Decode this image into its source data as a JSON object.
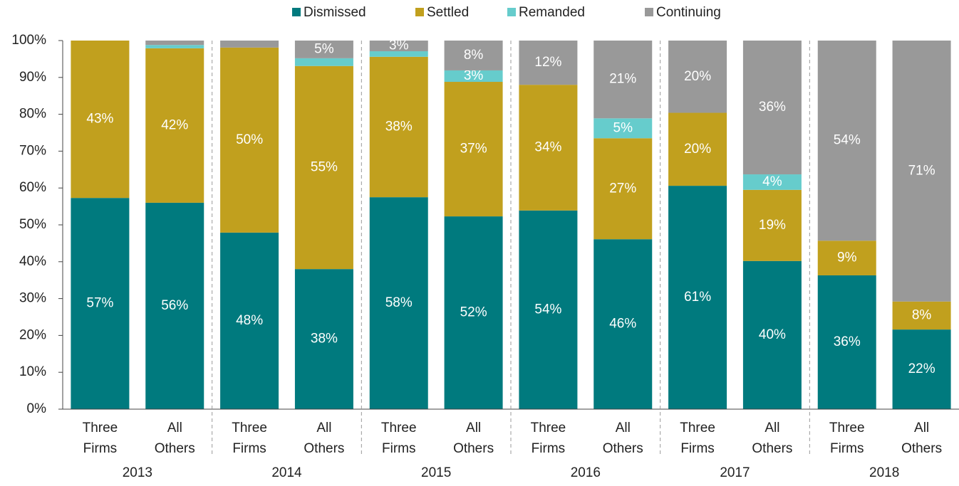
{
  "chart_data": {
    "type": "stacked_bar",
    "categories": [
      [
        "Three",
        "Firms"
      ],
      [
        "All",
        "Others"
      ],
      [
        "Three",
        "Firms"
      ],
      [
        "All",
        "Others"
      ],
      [
        "Three",
        "Firms"
      ],
      [
        "All",
        "Others"
      ],
      [
        "Three",
        "Firms"
      ],
      [
        "All",
        "Others"
      ],
      [
        "Three",
        "Firms"
      ],
      [
        "All",
        "Others"
      ],
      [
        "Three",
        "Firms"
      ],
      [
        "All",
        "Others"
      ]
    ],
    "groups": [
      "2013",
      "2014",
      "2015",
      "2016",
      "2017",
      "2018"
    ],
    "series": [
      {
        "name": "Dismissed",
        "color": "#007A7E",
        "values": [
          57.3,
          56.0,
          47.9,
          38.0,
          57.5,
          52.3,
          53.9,
          46.1,
          60.6,
          40.2,
          36.3,
          21.6
        ],
        "value_labels": [
          "57%",
          "56%",
          "48%",
          "38%",
          "58%",
          "52%",
          "54%",
          "46%",
          "61%",
          "40%",
          "36%",
          "22%"
        ]
      },
      {
        "name": "Settled",
        "color": "#C1A01E",
        "values": [
          42.7,
          41.9,
          50.2,
          55.1,
          38.1,
          36.5,
          34.1,
          27.4,
          19.8,
          19.3,
          9.4,
          7.6
        ],
        "value_labels": [
          "43%",
          "42%",
          "50%",
          "55%",
          "38%",
          "37%",
          "34%",
          "27%",
          "20%",
          "19%",
          "9%",
          "8%"
        ]
      },
      {
        "name": "Remanded",
        "color": "#66CCCC",
        "values": [
          0,
          0.9,
          0,
          2.1,
          1.5,
          3.1,
          0,
          5.4,
          0,
          4.2,
          0,
          0
        ],
        "value_labels": [
          null,
          null,
          null,
          null,
          null,
          "3%",
          null,
          "5%",
          null,
          "4%",
          null,
          null
        ]
      },
      {
        "name": "Continuing",
        "color": "#999999",
        "values": [
          0,
          1.2,
          1.9,
          4.8,
          2.9,
          8.1,
          12.0,
          21.1,
          19.6,
          36.3,
          54.3,
          70.8
        ],
        "value_labels": [
          null,
          null,
          null,
          "5%",
          "3%",
          "8%",
          "12%",
          "21%",
          "20%",
          "36%",
          "54%",
          "71%"
        ]
      }
    ],
    "ylim": [
      0,
      100
    ],
    "yticks": [
      {
        "value": 0,
        "label": "0%"
      },
      {
        "value": 10,
        "label": "10%"
      },
      {
        "value": 20,
        "label": "20%"
      },
      {
        "value": 30,
        "label": "30%"
      },
      {
        "value": 40,
        "label": "40%"
      },
      {
        "value": 50,
        "label": "50%"
      },
      {
        "value": 60,
        "label": "60%"
      },
      {
        "value": 70,
        "label": "70%"
      },
      {
        "value": 80,
        "label": "80%"
      },
      {
        "value": 90,
        "label": "90%"
      },
      {
        "value": 100,
        "label": "100%"
      }
    ],
    "legend": "top"
  }
}
